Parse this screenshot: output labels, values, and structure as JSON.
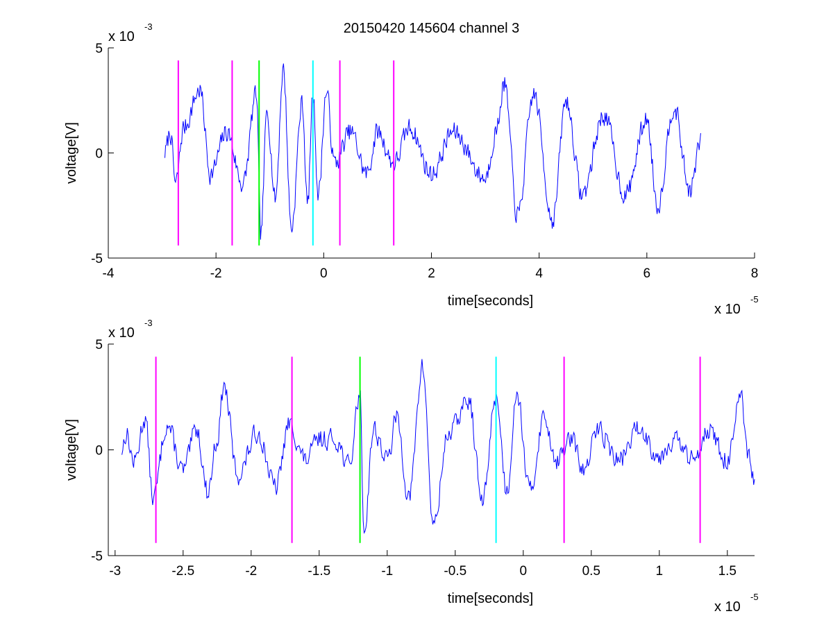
{
  "chart_data": [
    {
      "type": "line",
      "title": "20150420 145604 channel 3",
      "xlabel": "time[seconds]",
      "ylabel": "voltage[V]",
      "x_scale_label": "x 10",
      "x_scale_exponent": "-5",
      "y_scale_label": "x 10",
      "y_scale_exponent": "-3",
      "xlim": [
        -4,
        8
      ],
      "ylim": [
        -5,
        5
      ],
      "xticks": [
        -4,
        -2,
        0,
        2,
        4,
        6,
        8
      ],
      "xtick_labels": [
        "-4",
        "-2",
        "0",
        "2",
        "4",
        "6",
        "8"
      ],
      "yticks": [
        -5,
        0,
        5
      ],
      "ytick_labels": [
        "-5",
        "0",
        "5"
      ],
      "grid": false,
      "signal": {
        "color": "#0000ff",
        "x_range": [
          -2.95,
          7.0
        ],
        "anchors": [
          [
            -2.95,
            0.0
          ],
          [
            -2.85,
            1.0
          ],
          [
            -2.75,
            -1.5
          ],
          [
            -2.6,
            1.2
          ],
          [
            -2.3,
            3.0
          ],
          [
            -2.1,
            -1.0
          ],
          [
            -1.8,
            1.0
          ],
          [
            -1.5,
            -1.5
          ],
          [
            -1.25,
            2.8
          ],
          [
            -1.17,
            -3.9
          ],
          [
            -1.05,
            2.0
          ],
          [
            -0.9,
            -2.2
          ],
          [
            -0.75,
            4.0
          ],
          [
            -0.6,
            -3.6
          ],
          [
            -0.4,
            2.4
          ],
          [
            -0.3,
            -2.5
          ],
          [
            -0.2,
            2.8
          ],
          [
            -0.1,
            -2.0
          ],
          [
            0.05,
            2.9
          ],
          [
            0.2,
            -0.5
          ],
          [
            0.5,
            1.0
          ],
          [
            0.8,
            -1.0
          ],
          [
            1.0,
            1.0
          ],
          [
            1.3,
            -0.5
          ],
          [
            1.6,
            1.2
          ],
          [
            2.0,
            -1.0
          ],
          [
            2.4,
            1.0
          ],
          [
            3.0,
            -1.2
          ],
          [
            3.2,
            1.0
          ],
          [
            3.35,
            3.3
          ],
          [
            3.6,
            -3.0
          ],
          [
            3.9,
            2.8
          ],
          [
            4.25,
            -3.2
          ],
          [
            4.5,
            2.5
          ],
          [
            4.8,
            -2.0
          ],
          [
            5.2,
            1.8
          ],
          [
            5.6,
            -2.0
          ],
          [
            6.0,
            1.6
          ],
          [
            6.2,
            -2.5
          ],
          [
            6.5,
            2.2
          ],
          [
            6.8,
            -1.8
          ],
          [
            7.0,
            0.5
          ]
        ]
      },
      "markers": [
        {
          "x": -2.7,
          "color": "#ff00ff"
        },
        {
          "x": -1.7,
          "color": "#ff00ff"
        },
        {
          "x": -1.2,
          "color": "#00ff00"
        },
        {
          "x": -0.2,
          "color": "#00ffff"
        },
        {
          "x": 0.3,
          "color": "#ff00ff"
        },
        {
          "x": 1.3,
          "color": "#ff00ff"
        }
      ],
      "marker_yrange": [
        -4.4,
        4.4
      ]
    },
    {
      "type": "line",
      "title": "",
      "xlabel": "time[seconds]",
      "ylabel": "voltage[V]",
      "x_scale_label": "x 10",
      "x_scale_exponent": "-5",
      "y_scale_label": "x 10",
      "y_scale_exponent": "-3",
      "xlim": [
        -3.05,
        1.7
      ],
      "ylim": [
        -5,
        5
      ],
      "xticks": [
        -3,
        -2.5,
        -2,
        -1.5,
        -1,
        -0.5,
        0,
        0.5,
        1,
        1.5
      ],
      "xtick_labels": [
        "-3",
        "-2.5",
        "-2",
        "-1.5",
        "-1",
        "-0.5",
        "0",
        "0.5",
        "1",
        "1.5"
      ],
      "yticks": [
        -5,
        0,
        5
      ],
      "ytick_labels": [
        "-5",
        "0",
        "5"
      ],
      "grid": false,
      "signal": {
        "color": "#0000ff",
        "x_range": [
          -2.95,
          1.7
        ],
        "anchors": [
          [
            -2.95,
            0.0
          ],
          [
            -2.92,
            0.8
          ],
          [
            -2.86,
            -0.6
          ],
          [
            -2.78,
            1.5
          ],
          [
            -2.72,
            -2.3
          ],
          [
            -2.62,
            1.2
          ],
          [
            -2.5,
            -1.0
          ],
          [
            -2.4,
            1.0
          ],
          [
            -2.32,
            -2.0
          ],
          [
            -2.25,
            0.5
          ],
          [
            -2.2,
            3.0
          ],
          [
            -2.1,
            -1.2
          ],
          [
            -1.95,
            0.8
          ],
          [
            -1.82,
            -1.8
          ],
          [
            -1.72,
            1.2
          ],
          [
            -1.6,
            -0.5
          ],
          [
            -1.5,
            0.5
          ],
          [
            -1.38,
            0.5
          ],
          [
            -1.28,
            -0.8
          ],
          [
            -1.2,
            2.7
          ],
          [
            -1.17,
            -3.9
          ],
          [
            -1.1,
            1.0
          ],
          [
            -1.0,
            -0.5
          ],
          [
            -0.93,
            1.5
          ],
          [
            -0.84,
            -2.3
          ],
          [
            -0.74,
            3.9
          ],
          [
            -0.66,
            -3.6
          ],
          [
            -0.55,
            0.8
          ],
          [
            -0.4,
            2.3
          ],
          [
            -0.3,
            -2.5
          ],
          [
            -0.2,
            2.6
          ],
          [
            -0.12,
            -2.0
          ],
          [
            -0.05,
            2.8
          ],
          [
            0.05,
            -2.0
          ],
          [
            0.15,
            1.5
          ],
          [
            0.25,
            -0.5
          ],
          [
            0.35,
            0.5
          ],
          [
            0.45,
            -1.0
          ],
          [
            0.55,
            1.0
          ],
          [
            0.7,
            -0.5
          ],
          [
            0.85,
            1.0
          ],
          [
            1.0,
            -0.3
          ],
          [
            1.1,
            0.5
          ],
          [
            1.25,
            -0.5
          ],
          [
            1.35,
            1.0
          ],
          [
            1.5,
            -0.5
          ],
          [
            1.6,
            2.4
          ],
          [
            1.65,
            -0.3
          ],
          [
            1.7,
            -1.5
          ]
        ]
      },
      "markers": [
        {
          "x": -2.7,
          "color": "#ff00ff"
        },
        {
          "x": -1.7,
          "color": "#ff00ff"
        },
        {
          "x": -1.2,
          "color": "#00ff00"
        },
        {
          "x": -0.2,
          "color": "#00ffff"
        },
        {
          "x": 0.3,
          "color": "#ff00ff"
        },
        {
          "x": 1.3,
          "color": "#ff00ff"
        }
      ],
      "marker_yrange": [
        -4.4,
        4.4
      ]
    }
  ]
}
